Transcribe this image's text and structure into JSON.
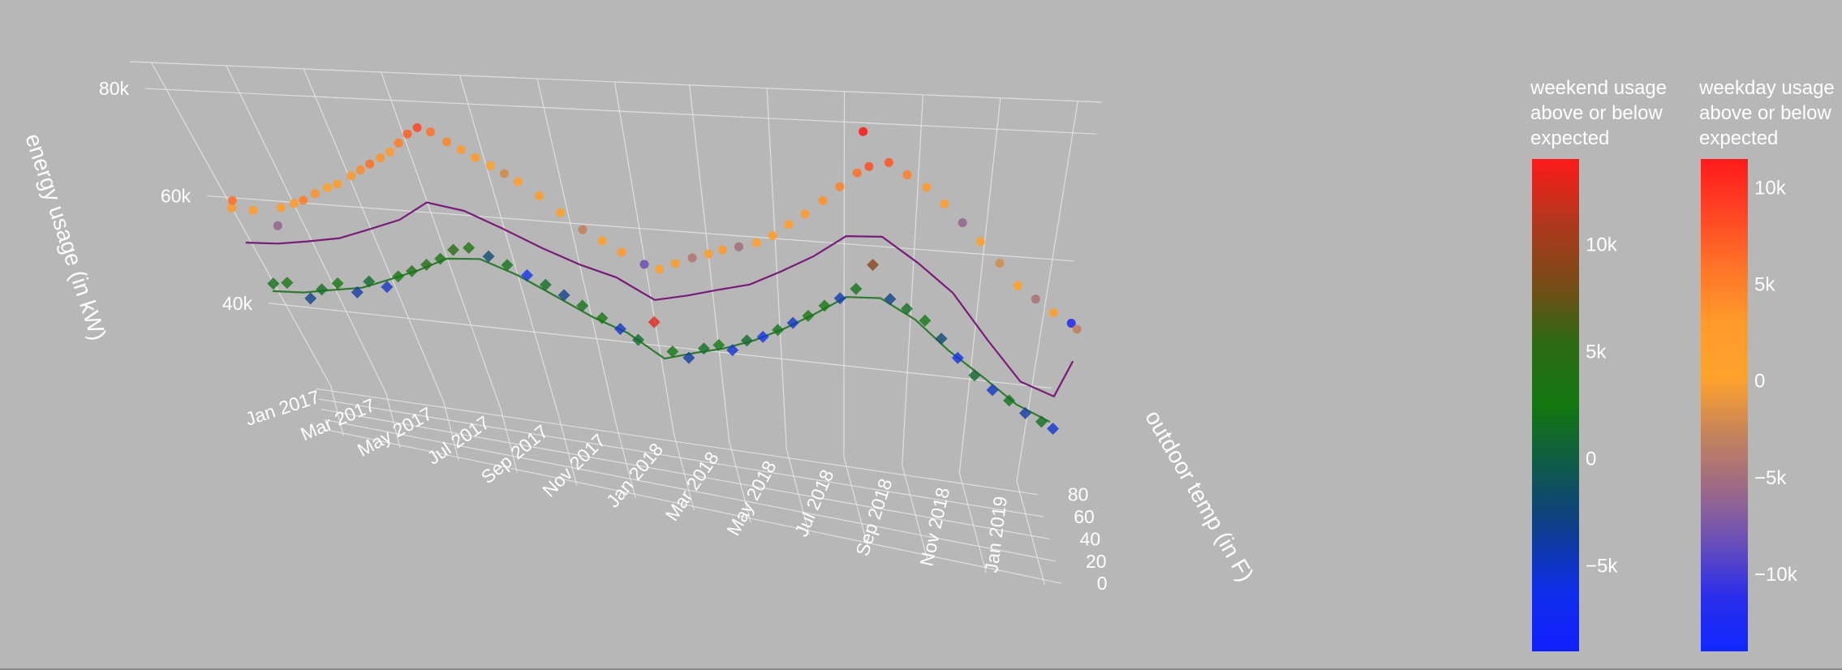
{
  "chart_data": {
    "type": "scatter",
    "subtype": "3d-scatter-with-lines",
    "axes": {
      "x": {
        "label": "",
        "ticks": [
          "Jan 2017",
          "Mar 2017",
          "May 2017",
          "Jul 2017",
          "Sep 2017",
          "Nov 2017",
          "Jan 2018",
          "Mar 2018",
          "May 2018",
          "Jul 2018",
          "Sep 2018",
          "Nov 2018",
          "Jan 2019"
        ],
        "range": [
          "2016-12-15",
          "2019-01-20"
        ]
      },
      "y": {
        "label": "outdoor temp (in F)",
        "ticks": [
          "0",
          "20",
          "40",
          "60",
          "80"
        ],
        "range": [
          -5,
          90
        ]
      },
      "z": {
        "label": "energy usage (in kW)",
        "ticks": [
          "40k",
          "60k",
          "80k"
        ],
        "range": [
          25000,
          85000
        ]
      },
      "grid": true
    },
    "colorbars": [
      {
        "title": "weekend usage above or below expected",
        "ticks": [
          "10k",
          "5k",
          "0",
          "−5k"
        ],
        "tick_values": [
          10000,
          5000,
          0,
          -5000
        ],
        "range": [
          -9000,
          14000
        ],
        "colors": [
          "#ff1a1a",
          "#b2371c",
          "#7a4a15",
          "#2c6a12",
          "#12770f",
          "#0f5a4a",
          "#0e3d8c",
          "#0f2ee8",
          "#1020ff"
        ]
      },
      {
        "title": "weekday usage above or below expected",
        "ticks": [
          "10k",
          "5k",
          "0",
          "−5k",
          "−10k"
        ],
        "tick_values": [
          10000,
          5000,
          0,
          -5000,
          -10000
        ],
        "range": [
          -14000,
          11500
        ],
        "colors": [
          "#ff1a1a",
          "#ff4424",
          "#ff7528",
          "#ff9a2c",
          "#ffa22c",
          "#c7845a",
          "#9e6a86",
          "#6a4fb8",
          "#2a2dea",
          "#1028ff"
        ]
      }
    ],
    "series": [
      {
        "name": "",
        "kind": "weekday markers",
        "marker": "circle",
        "colorbar": 1,
        "points": [
          [
            "2017-01-05",
            60,
            61000,
            3000
          ],
          [
            "2017-01-10",
            55,
            63000,
            6000
          ],
          [
            "2017-01-25",
            50,
            62000,
            1500
          ],
          [
            "2017-02-10",
            45,
            60000,
            -6000
          ],
          [
            "2017-02-20",
            55,
            62500,
            2000
          ],
          [
            "2017-03-05",
            60,
            63000,
            2500
          ],
          [
            "2017-03-15",
            58,
            64000,
            5000
          ],
          [
            "2017-03-28",
            62,
            65000,
            3500
          ],
          [
            "2017-04-10",
            65,
            66000,
            1000
          ],
          [
            "2017-04-20",
            68,
            66500,
            2000
          ],
          [
            "2017-05-05",
            70,
            68000,
            3000
          ],
          [
            "2017-05-15",
            72,
            69000,
            4000
          ],
          [
            "2017-05-25",
            74,
            70000,
            6000
          ],
          [
            "2017-06-05",
            76,
            71000,
            3500
          ],
          [
            "2017-06-15",
            78,
            72000,
            2500
          ],
          [
            "2017-06-25",
            80,
            73500,
            5000
          ],
          [
            "2017-07-05",
            82,
            75000,
            7000
          ],
          [
            "2017-07-15",
            84,
            76000,
            8500
          ],
          [
            "2017-07-25",
            83,
            75500,
            6000
          ],
          [
            "2017-08-05",
            82,
            74000,
            4500
          ],
          [
            "2017-08-15",
            80,
            73000,
            3000
          ],
          [
            "2017-08-25",
            78,
            72000,
            2500
          ],
          [
            "2017-09-05",
            76,
            71000,
            1000
          ],
          [
            "2017-09-15",
            74,
            70000,
            -2000
          ],
          [
            "2017-09-25",
            72,
            69000,
            1500
          ],
          [
            "2017-10-10",
            70,
            67000,
            2000
          ],
          [
            "2017-10-25",
            65,
            65000,
            500
          ],
          [
            "2017-11-10",
            60,
            63000,
            -3000
          ],
          [
            "2017-11-25",
            55,
            62000,
            1000
          ],
          [
            "2017-12-10",
            50,
            61000,
            2500
          ],
          [
            "2017-12-28",
            45,
            60000,
            -8000
          ],
          [
            "2018-01-10",
            48,
            59000,
            1000
          ],
          [
            "2018-01-25",
            50,
            60000,
            2000
          ],
          [
            "2018-02-10",
            52,
            61000,
            -4000
          ],
          [
            "2018-02-25",
            55,
            61500,
            1500
          ],
          [
            "2018-03-10",
            58,
            62000,
            2500
          ],
          [
            "2018-03-25",
            60,
            62500,
            -5000
          ],
          [
            "2018-04-10",
            63,
            63000,
            1000
          ],
          [
            "2018-04-25",
            66,
            64000,
            2000
          ],
          [
            "2018-05-10",
            70,
            65500,
            1500
          ],
          [
            "2018-05-25",
            73,
            67000,
            2500
          ],
          [
            "2018-06-10",
            76,
            69000,
            3500
          ],
          [
            "2018-06-25",
            79,
            71000,
            4500
          ],
          [
            "2018-07-10",
            82,
            73000,
            6000
          ],
          [
            "2018-07-15",
            84,
            79500,
            13000
          ],
          [
            "2018-07-20",
            83,
            74000,
            8000
          ],
          [
            "2018-08-05",
            82,
            75000,
            7500
          ],
          [
            "2018-08-20",
            80,
            73500,
            5000
          ],
          [
            "2018-09-05",
            78,
            72000,
            3000
          ],
          [
            "2018-09-20",
            75,
            70000,
            1500
          ],
          [
            "2018-10-05",
            70,
            68000,
            -6000
          ],
          [
            "2018-10-20",
            65,
            66000,
            1000
          ],
          [
            "2018-11-05",
            58,
            64000,
            -2000
          ],
          [
            "2018-11-20",
            50,
            62000,
            500
          ],
          [
            "2018-12-05",
            45,
            61000,
            -4500
          ],
          [
            "2018-12-20",
            40,
            60000,
            1500
          ],
          [
            "2019-01-05",
            38,
            59000,
            -12000
          ],
          [
            "2019-01-10",
            36,
            58500,
            -3000
          ]
        ]
      },
      {
        "name": "",
        "kind": "weekday expected line",
        "color": "#7a1a7a",
        "points": [
          [
            "2017-01-01",
            55,
            55000
          ],
          [
            "2017-02-01",
            50,
            56000
          ],
          [
            "2017-03-01",
            55,
            56500
          ],
          [
            "2017-04-01",
            62,
            57000
          ],
          [
            "2017-05-01",
            68,
            58500
          ],
          [
            "2017-06-01",
            75,
            60000
          ],
          [
            "2017-07-01",
            80,
            63000
          ],
          [
            "2017-08-01",
            80,
            62000
          ],
          [
            "2017-09-01",
            74,
            60000
          ],
          [
            "2017-10-01",
            68,
            58000
          ],
          [
            "2017-11-01",
            58,
            57000
          ],
          [
            "2017-12-01",
            50,
            56500
          ],
          [
            "2018-01-01",
            45,
            54000
          ],
          [
            "2018-02-01",
            48,
            55000
          ],
          [
            "2018-03-01",
            55,
            55500
          ],
          [
            "2018-04-01",
            62,
            56000
          ],
          [
            "2018-05-01",
            70,
            57500
          ],
          [
            "2018-06-01",
            77,
            59500
          ],
          [
            "2018-07-01",
            82,
            62500
          ],
          [
            "2018-08-01",
            81,
            63000
          ],
          [
            "2018-09-01",
            76,
            60000
          ],
          [
            "2018-10-01",
            68,
            57000
          ],
          [
            "2018-11-01",
            56,
            52000
          ],
          [
            "2018-12-01",
            44,
            48000
          ],
          [
            "2019-01-01",
            40,
            47000
          ],
          [
            "2019-01-15",
            45,
            52000
          ]
        ]
      },
      {
        "name": "",
        "kind": "weekend markers",
        "marker": "diamond",
        "colorbar": 0,
        "points": [
          [
            "2017-01-05",
            60,
            47000,
            2000
          ],
          [
            "2017-01-20",
            55,
            48000,
            3000
          ],
          [
            "2017-02-05",
            50,
            46000,
            -3000
          ],
          [
            "2017-02-20",
            55,
            47500,
            1500
          ],
          [
            "2017-03-10",
            60,
            48500,
            2500
          ],
          [
            "2017-03-25",
            62,
            47000,
            -4000
          ],
          [
            "2017-04-10",
            65,
            49000,
            1000
          ],
          [
            "2017-04-25",
            68,
            48000,
            -5000
          ],
          [
            "2017-05-10",
            70,
            50000,
            2500
          ],
          [
            "2017-05-25",
            72,
            51000,
            3500
          ],
          [
            "2017-06-10",
            76,
            52000,
            4000
          ],
          [
            "2017-06-25",
            79,
            53000,
            3000
          ],
          [
            "2017-07-10",
            82,
            54500,
            5000
          ],
          [
            "2017-07-25",
            83,
            55000,
            3500
          ],
          [
            "2017-08-10",
            81,
            54000,
            -2000
          ],
          [
            "2017-08-25",
            79,
            53000,
            2000
          ],
          [
            "2017-09-10",
            75,
            52000,
            -6000
          ],
          [
            "2017-09-25",
            72,
            51000,
            1500
          ],
          [
            "2017-10-10",
            68,
            50000,
            -3000
          ],
          [
            "2017-10-25",
            64,
            49000,
            2000
          ],
          [
            "2017-11-10",
            58,
            48000,
            3000
          ],
          [
            "2017-11-25",
            54,
            47000,
            -5000
          ],
          [
            "2017-12-10",
            50,
            46000,
            1000
          ],
          [
            "2017-12-28",
            46,
            50000,
            13000
          ],
          [
            "2018-01-10",
            48,
            45000,
            2500
          ],
          [
            "2018-01-25",
            50,
            44000,
            -4000
          ],
          [
            "2018-02-10",
            53,
            45500,
            1500
          ],
          [
            "2018-02-25",
            56,
            46000,
            2500
          ],
          [
            "2018-03-10",
            59,
            45000,
            -5500
          ],
          [
            "2018-03-25",
            62,
            46500,
            1000
          ],
          [
            "2018-04-10",
            65,
            47000,
            -6000
          ],
          [
            "2018-04-25",
            68,
            48000,
            2000
          ],
          [
            "2018-05-10",
            71,
            49000,
            -5000
          ],
          [
            "2018-05-25",
            74,
            50000,
            3000
          ],
          [
            "2018-06-10",
            77,
            51500,
            2500
          ],
          [
            "2018-06-25",
            80,
            52500,
            -4500
          ],
          [
            "2018-07-10",
            82,
            54000,
            2000
          ],
          [
            "2018-07-25",
            83,
            58000,
            9000
          ],
          [
            "2018-08-10",
            81,
            53000,
            -3000
          ],
          [
            "2018-08-25",
            79,
            52000,
            1500
          ],
          [
            "2018-09-10",
            75,
            51000,
            2500
          ],
          [
            "2018-09-25",
            71,
            49000,
            -2000
          ],
          [
            "2018-10-10",
            66,
            47000,
            -6500
          ],
          [
            "2018-10-25",
            60,
            45500,
            1000
          ],
          [
            "2018-11-10",
            54,
            44500,
            -5000
          ],
          [
            "2018-11-25",
            49,
            44000,
            2000
          ],
          [
            "2018-12-10",
            45,
            43000,
            -4000
          ],
          [
            "2018-12-25",
            42,
            42500,
            1500
          ],
          [
            "2019-01-05",
            40,
            42000,
            -5500
          ]
        ]
      },
      {
        "name": "",
        "kind": "weekend expected line",
        "color": "#2e7a2e",
        "points": [
          [
            "2017-01-01",
            55,
            46000
          ],
          [
            "2017-02-01",
            50,
            47000
          ],
          [
            "2017-03-01",
            56,
            47500
          ],
          [
            "2017-04-01",
            62,
            48000
          ],
          [
            "2017-05-01",
            68,
            49500
          ],
          [
            "2017-06-01",
            75,
            51000
          ],
          [
            "2017-07-01",
            80,
            53000
          ],
          [
            "2017-08-01",
            80,
            53500
          ],
          [
            "2017-09-01",
            74,
            52000
          ],
          [
            "2017-10-01",
            66,
            50000
          ],
          [
            "2017-11-01",
            58,
            48000
          ],
          [
            "2017-12-01",
            50,
            47000
          ],
          [
            "2018-01-01",
            45,
            44000
          ],
          [
            "2018-02-01",
            50,
            45000
          ],
          [
            "2018-03-01",
            56,
            45500
          ],
          [
            "2018-04-01",
            63,
            46500
          ],
          [
            "2018-05-01",
            70,
            48000
          ],
          [
            "2018-06-01",
            77,
            50000
          ],
          [
            "2018-07-01",
            82,
            52500
          ],
          [
            "2018-08-01",
            81,
            53000
          ],
          [
            "2018-09-01",
            75,
            51000
          ],
          [
            "2018-10-01",
            66,
            48000
          ],
          [
            "2018-11-01",
            56,
            46000
          ],
          [
            "2018-12-01",
            46,
            44000
          ],
          [
            "2019-01-01",
            40,
            43000
          ]
        ]
      }
    ]
  }
}
